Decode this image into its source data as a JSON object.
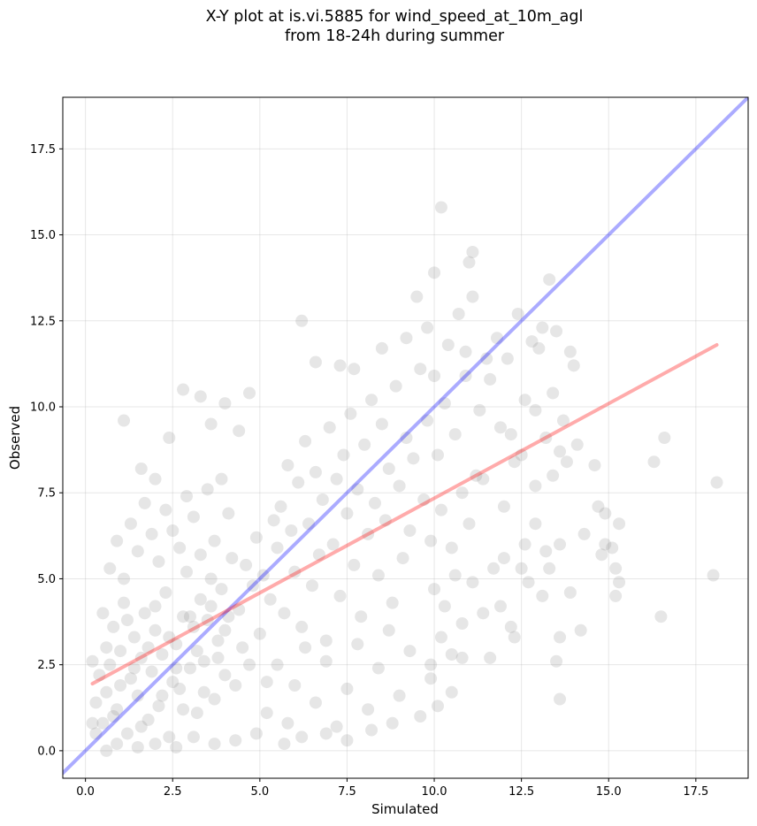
{
  "chart_data": {
    "type": "scatter",
    "title": "X-Y plot at is.vi.5885 for wind_speed_at_10m_agl",
    "subtitle": "from 18-24h during summer",
    "xlabel": "Simulated",
    "ylabel": "Observed",
    "xlim": [
      -0.65,
      19.0
    ],
    "ylim": [
      -0.8,
      19.0
    ],
    "xticks": [
      "0.0",
      "2.5",
      "5.0",
      "7.5",
      "10.0",
      "12.5",
      "15.0",
      "17.5"
    ],
    "yticks": [
      "0.0",
      "2.5",
      "5.0",
      "7.5",
      "10.0",
      "12.5",
      "15.0",
      "17.5"
    ],
    "grid": true,
    "point_color": "#808080",
    "lines": [
      {
        "kind": "one-to-one",
        "color": "#0000ff",
        "x": [
          -0.65,
          19.0
        ],
        "y": [
          -0.65,
          19.0
        ]
      },
      {
        "kind": "regression",
        "color": "#ff0000",
        "x": [
          0.2,
          18.1
        ],
        "y": [
          1.95,
          11.8
        ]
      }
    ],
    "points": [
      [
        0.5,
        0.8
      ],
      [
        0.6,
        1.7
      ],
      [
        0.7,
        2.5
      ],
      [
        0.8,
        3.6
      ],
      [
        0.9,
        1.2
      ],
      [
        1.0,
        2.9
      ],
      [
        1.1,
        4.3
      ],
      [
        1.2,
        0.5
      ],
      [
        1.3,
        2.1
      ],
      [
        1.4,
        3.3
      ],
      [
        1.5,
        1.6
      ],
      [
        1.6,
        2.7
      ],
      [
        1.7,
        4.0
      ],
      [
        1.8,
        0.9
      ],
      [
        1.9,
        2.3
      ],
      [
        2.0,
        3.5
      ],
      [
        2.1,
        1.3
      ],
      [
        2.2,
        2.8
      ],
      [
        2.3,
        4.6
      ],
      [
        2.4,
        0.4
      ],
      [
        2.5,
        2.0
      ],
      [
        2.6,
        3.1
      ],
      [
        2.7,
        1.8
      ],
      [
        2.8,
        3.9
      ],
      [
        2.9,
        5.2
      ],
      [
        3.0,
        2.4
      ],
      [
        3.1,
        3.6
      ],
      [
        3.2,
        1.1
      ],
      [
        3.3,
        4.4
      ],
      [
        3.4,
        2.6
      ],
      [
        3.5,
        3.8
      ],
      [
        3.6,
        5.0
      ],
      [
        3.7,
        1.5
      ],
      [
        3.8,
        3.2
      ],
      [
        3.9,
        4.7
      ],
      [
        4.0,
        2.2
      ],
      [
        4.1,
        3.9
      ],
      [
        4.2,
        5.6
      ],
      [
        4.3,
        1.9
      ],
      [
        4.4,
        4.1
      ],
      [
        4.5,
        3.0
      ],
      [
        4.6,
        5.4
      ],
      [
        4.7,
        2.5
      ],
      [
        4.8,
        4.8
      ],
      [
        4.9,
        6.2
      ],
      [
        5.0,
        3.4
      ],
      [
        5.1,
        5.1
      ],
      [
        5.2,
        2.0
      ],
      [
        5.3,
        4.4
      ],
      [
        5.4,
        6.7
      ],
      [
        0.3,
        1.4
      ],
      [
        0.4,
        2.2
      ],
      [
        0.6,
        3.0
      ],
      [
        0.8,
        1.0
      ],
      [
        1.0,
        1.9
      ],
      [
        1.2,
        3.8
      ],
      [
        1.4,
        2.4
      ],
      [
        1.6,
        0.7
      ],
      [
        1.8,
        3.0
      ],
      [
        2.0,
        4.2
      ],
      [
        2.2,
        1.6
      ],
      [
        2.4,
        3.3
      ],
      [
        2.6,
        2.4
      ],
      [
        2.8,
        1.2
      ],
      [
        3.0,
        3.9
      ],
      [
        3.2,
        2.9
      ],
      [
        3.4,
        1.7
      ],
      [
        3.6,
        4.2
      ],
      [
        3.8,
        2.7
      ],
      [
        4.0,
        3.5
      ],
      [
        0.2,
        2.6
      ],
      [
        0.5,
        4.0
      ],
      [
        0.7,
        5.3
      ],
      [
        0.9,
        6.1
      ],
      [
        1.1,
        5.0
      ],
      [
        1.3,
        6.6
      ],
      [
        1.5,
        5.8
      ],
      [
        1.7,
        7.2
      ],
      [
        1.9,
        6.3
      ],
      [
        2.1,
        5.5
      ],
      [
        2.3,
        7.0
      ],
      [
        2.5,
        6.4
      ],
      [
        2.7,
        5.9
      ],
      [
        2.9,
        7.4
      ],
      [
        3.1,
        6.8
      ],
      [
        3.3,
        5.7
      ],
      [
        3.5,
        7.6
      ],
      [
        3.7,
        6.1
      ],
      [
        3.9,
        7.9
      ],
      [
        4.1,
        6.9
      ],
      [
        1.1,
        9.6
      ],
      [
        1.6,
        8.2
      ],
      [
        2.0,
        7.9
      ],
      [
        2.4,
        9.1
      ],
      [
        2.8,
        10.5
      ],
      [
        3.3,
        10.3
      ],
      [
        3.6,
        9.5
      ],
      [
        4.0,
        10.1
      ],
      [
        4.4,
        9.3
      ],
      [
        4.7,
        10.4
      ],
      [
        5.5,
        5.9
      ],
      [
        5.6,
        7.1
      ],
      [
        5.7,
        4.0
      ],
      [
        5.8,
        8.3
      ],
      [
        5.9,
        6.4
      ],
      [
        6.0,
        5.2
      ],
      [
        6.1,
        7.8
      ],
      [
        6.2,
        3.6
      ],
      [
        6.3,
        9.0
      ],
      [
        6.4,
        6.6
      ],
      [
        6.5,
        4.8
      ],
      [
        6.6,
        8.1
      ],
      [
        6.7,
        5.7
      ],
      [
        6.8,
        7.3
      ],
      [
        6.9,
        3.2
      ],
      [
        7.0,
        9.4
      ],
      [
        7.1,
        6.0
      ],
      [
        7.2,
        7.9
      ],
      [
        7.3,
        4.5
      ],
      [
        7.4,
        8.6
      ],
      [
        7.5,
        6.9
      ],
      [
        7.6,
        9.8
      ],
      [
        7.7,
        5.4
      ],
      [
        7.8,
        7.6
      ],
      [
        7.9,
        3.9
      ],
      [
        8.0,
        8.9
      ],
      [
        8.1,
        6.3
      ],
      [
        8.2,
        10.2
      ],
      [
        8.3,
        7.2
      ],
      [
        8.4,
        5.1
      ],
      [
        8.5,
        9.5
      ],
      [
        8.6,
        6.7
      ],
      [
        8.7,
        8.2
      ],
      [
        8.8,
        4.3
      ],
      [
        8.9,
        10.6
      ],
      [
        9.0,
        7.7
      ],
      [
        9.1,
        5.6
      ],
      [
        9.2,
        9.1
      ],
      [
        9.3,
        6.4
      ],
      [
        9.4,
        8.5
      ],
      [
        5.2,
        1.1
      ],
      [
        5.5,
        2.5
      ],
      [
        5.8,
        0.8
      ],
      [
        6.0,
        1.9
      ],
      [
        6.3,
        3.0
      ],
      [
        6.6,
        1.4
      ],
      [
        6.9,
        2.6
      ],
      [
        7.2,
        0.7
      ],
      [
        7.5,
        1.8
      ],
      [
        7.8,
        3.1
      ],
      [
        8.1,
        1.2
      ],
      [
        8.4,
        2.4
      ],
      [
        8.7,
        3.5
      ],
      [
        9.0,
        1.6
      ],
      [
        9.3,
        2.9
      ],
      [
        9.6,
        1.0
      ],
      [
        9.9,
        2.1
      ],
      [
        10.2,
        3.3
      ],
      [
        10.5,
        1.7
      ],
      [
        10.8,
        2.7
      ],
      [
        6.2,
        12.5
      ],
      [
        6.6,
        11.3
      ],
      [
        7.3,
        11.2
      ],
      [
        7.7,
        11.1
      ],
      [
        8.5,
        11.7
      ],
      [
        9.2,
        12.0
      ],
      [
        9.5,
        13.2
      ],
      [
        9.8,
        12.3
      ],
      [
        10.0,
        13.9
      ],
      [
        10.2,
        15.8
      ],
      [
        10.4,
        11.8
      ],
      [
        10.7,
        12.7
      ],
      [
        10.9,
        11.6
      ],
      [
        11.1,
        14.5
      ],
      [
        11.0,
        14.2
      ],
      [
        11.1,
        13.2
      ],
      [
        11.5,
        11.4
      ],
      [
        11.8,
        12.0
      ],
      [
        12.1,
        11.4
      ],
      [
        10.0,
        10.9
      ],
      [
        9.6,
        11.1
      ],
      [
        9.8,
        9.6
      ],
      [
        10.1,
        8.6
      ],
      [
        10.3,
        10.1
      ],
      [
        10.6,
        9.2
      ],
      [
        10.9,
        10.9
      ],
      [
        11.2,
        8.0
      ],
      [
        11.3,
        9.9
      ],
      [
        11.6,
        10.8
      ],
      [
        11.9,
        9.4
      ],
      [
        9.7,
        7.3
      ],
      [
        9.9,
        6.1
      ],
      [
        10.2,
        7.0
      ],
      [
        10.5,
        5.9
      ],
      [
        10.8,
        7.5
      ],
      [
        11.0,
        6.6
      ],
      [
        11.4,
        7.9
      ],
      [
        11.7,
        5.3
      ],
      [
        12.0,
        7.1
      ],
      [
        12.3,
        8.4
      ],
      [
        10.0,
        4.7
      ],
      [
        10.3,
        4.2
      ],
      [
        10.6,
        5.1
      ],
      [
        10.8,
        3.7
      ],
      [
        11.1,
        4.9
      ],
      [
        11.4,
        4.0
      ],
      [
        11.9,
        4.2
      ],
      [
        12.2,
        3.6
      ],
      [
        12.5,
        5.3
      ],
      [
        12.0,
        5.6
      ],
      [
        12.4,
        12.7
      ],
      [
        12.8,
        11.9
      ],
      [
        13.1,
        12.3
      ],
      [
        13.3,
        13.7
      ],
      [
        13.5,
        12.2
      ],
      [
        13.9,
        11.6
      ],
      [
        14.0,
        11.2
      ],
      [
        13.0,
        11.7
      ],
      [
        12.6,
        10.2
      ],
      [
        13.4,
        10.4
      ],
      [
        12.9,
        9.9
      ],
      [
        13.2,
        9.1
      ],
      [
        13.6,
        8.7
      ],
      [
        13.8,
        8.4
      ],
      [
        14.1,
        8.9
      ],
      [
        13.4,
        8.0
      ],
      [
        12.9,
        7.7
      ],
      [
        12.5,
        8.6
      ],
      [
        12.2,
        9.2
      ],
      [
        13.7,
        9.6
      ],
      [
        12.6,
        6.0
      ],
      [
        12.9,
        6.6
      ],
      [
        13.2,
        5.8
      ],
      [
        13.6,
        6.0
      ],
      [
        13.9,
        4.6
      ],
      [
        14.3,
        6.3
      ],
      [
        14.7,
        7.1
      ],
      [
        14.9,
        6.0
      ],
      [
        15.1,
        5.9
      ],
      [
        14.8,
        5.7
      ],
      [
        12.7,
        4.9
      ],
      [
        13.1,
        4.5
      ],
      [
        13.3,
        5.3
      ],
      [
        15.2,
        5.3
      ],
      [
        15.3,
        4.9
      ],
      [
        15.2,
        4.5
      ],
      [
        13.6,
        3.3
      ],
      [
        14.2,
        3.5
      ],
      [
        13.5,
        2.6
      ],
      [
        13.6,
        1.5
      ],
      [
        14.6,
        8.3
      ],
      [
        14.9,
        6.9
      ],
      [
        15.3,
        6.6
      ],
      [
        16.3,
        8.4
      ],
      [
        16.6,
        9.1
      ],
      [
        16.5,
        3.9
      ],
      [
        18.0,
        5.1
      ],
      [
        18.1,
        7.8
      ],
      [
        12.3,
        3.3
      ],
      [
        11.6,
        2.7
      ],
      [
        9.9,
        2.5
      ],
      [
        10.1,
        1.3
      ],
      [
        10.5,
        2.8
      ],
      [
        8.8,
        0.8
      ],
      [
        8.2,
        0.6
      ],
      [
        7.5,
        0.3
      ],
      [
        6.9,
        0.5
      ],
      [
        6.2,
        0.4
      ],
      [
        5.7,
        0.2
      ],
      [
        4.9,
        0.5
      ],
      [
        4.3,
        0.3
      ],
      [
        3.7,
        0.2
      ],
      [
        3.1,
        0.4
      ],
      [
        2.6,
        0.1
      ],
      [
        2.0,
        0.2
      ],
      [
        1.5,
        0.1
      ],
      [
        0.9,
        0.2
      ],
      [
        0.6,
        0.0
      ],
      [
        0.3,
        0.5
      ],
      [
        0.2,
        0.8
      ]
    ]
  }
}
